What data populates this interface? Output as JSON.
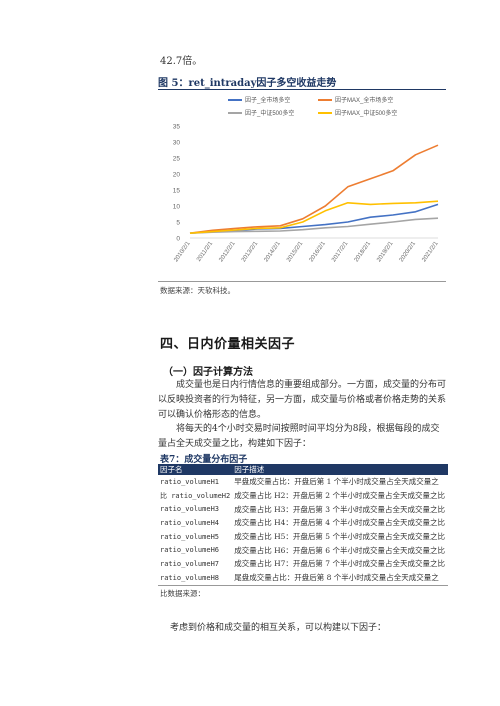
{
  "top_text": "42.7倍。",
  "figure": {
    "title": "图 5：ret_intraday因子多空收益走势",
    "source": "数据来源：天软科技。"
  },
  "chart_data": {
    "type": "line",
    "title": "",
    "xlabel": "",
    "ylabel": "",
    "ylim": [
      0,
      35
    ],
    "yticks": [
      0,
      5,
      10,
      15,
      20,
      25,
      30,
      35
    ],
    "x": [
      "2010/2/1",
      "2011/2/1",
      "2012/2/1",
      "2013/2/1",
      "2014/2/1",
      "2015/2/1",
      "2016/2/1",
      "2017/2/1",
      "2018/2/1",
      "2019/2/1",
      "2020/2/1",
      "2021/2/1"
    ],
    "legend_position": "top",
    "grid": false,
    "series": [
      {
        "name": "因子_全市场多空",
        "color": "#4472c4",
        "values": [
          1.5,
          2.0,
          2.4,
          2.8,
          3.0,
          3.6,
          4.2,
          5.0,
          6.5,
          7.2,
          8.2,
          10.5
        ]
      },
      {
        "name": "因子MAX_全市场多空",
        "color": "#ed7d31",
        "values": [
          1.5,
          2.4,
          3.0,
          3.5,
          3.8,
          6.0,
          10.0,
          16.0,
          18.5,
          21.0,
          26.0,
          29.0
        ]
      },
      {
        "name": "因子_中证500多空",
        "color": "#a5a5a5",
        "values": [
          1.5,
          1.8,
          2.0,
          2.1,
          2.2,
          2.6,
          3.2,
          3.6,
          4.3,
          5.0,
          5.8,
          6.2
        ]
      },
      {
        "name": "因子MAX_中证500多空",
        "color": "#ffc000",
        "values": [
          1.5,
          2.0,
          2.5,
          3.0,
          3.2,
          5.0,
          8.5,
          11.0,
          10.5,
          10.8,
          11.0,
          11.5
        ]
      }
    ]
  },
  "section": {
    "title": "四、日内价量相关因子",
    "subtitle": "（一）因子计算方法",
    "para1": "成交量也是日内行情信息的重要组成部分。一方面，成交量的分布可以反映投资者的行为特征，另一方面，成交量与价格或者价格走势的关系可以确认价格形态的信息。",
    "para2": "将每天的4个小时交易时间按照时间平均分为8段，根据每段的成交量占全天成交量之比，构建如下因子："
  },
  "table": {
    "title": "表7：成交量分布因子",
    "headers": [
      "因子名",
      "因子描述"
    ],
    "rows": [
      [
        "ratio_volumeH1",
        "早盘成交量占比：开盘后第 1 个半小时成交量占全天成交量之"
      ],
      [
        "比 ratio_volumeH2",
        "成交量占比 H2：开盘后第 2 个半小时成交量占全天成交量之比"
      ],
      [
        "ratio_volumeH3",
        "成交量占比 H3：开盘后第 3 个半小时成交量占全天成交量之比"
      ],
      [
        "ratio_volumeH4",
        "成交量占比 H4：开盘后第 4 个半小时成交量占全天成交量之比"
      ],
      [
        "ratio_volumeH5",
        "成交量占比 H5：开盘后第 5 个半小时成交量占全天成交量之比"
      ],
      [
        "ratio_volumeH6",
        "成交量占比 H6：开盘后第 6 个半小时成交量占全天成交量之比"
      ],
      [
        "ratio_volumeH7",
        "成交量占比 H7：开盘后第 7 个半小时成交量占全天成交量之比"
      ],
      [
        "ratio_volumeH8",
        "尾盘成交量占比：开盘后第 8 个半小时成交量占全天成交量之"
      ]
    ],
    "source": "比数据来源："
  },
  "para3": "考虑到价格和成交量的相互关系，可以构建以下因子："
}
